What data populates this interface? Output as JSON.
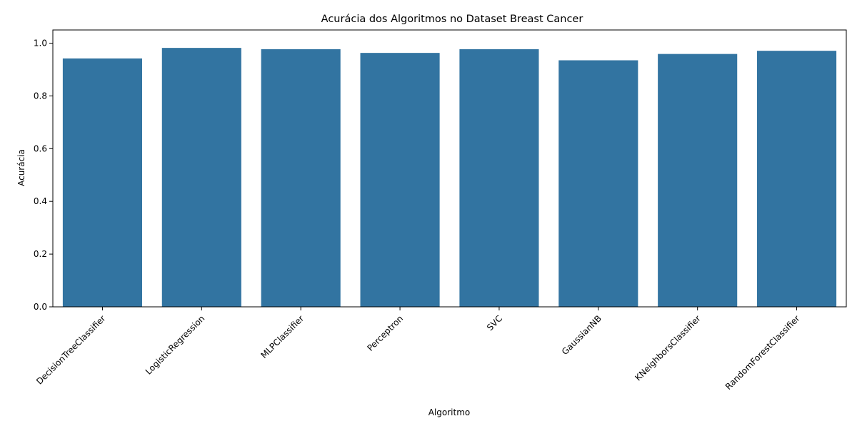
{
  "chart_data": {
    "type": "bar",
    "title": "Acurácia dos Algoritmos no Dataset Breast Cancer",
    "xlabel": "Algoritmo",
    "ylabel": "Acurácia",
    "categories": [
      "DecisionTreeClassifier",
      "LogisticRegression",
      "MLPClassifier",
      "Perceptron",
      "SVC",
      "GaussianNB",
      "KNeighborsClassifier",
      "RandomForestClassifier"
    ],
    "values": [
      0.942,
      0.982,
      0.977,
      0.963,
      0.977,
      0.935,
      0.959,
      0.971
    ],
    "ylim": [
      0,
      1.05
    ],
    "yticks": [
      "0.0",
      "0.2",
      "0.4",
      "0.6",
      "0.8",
      "1.0"
    ],
    "bar_color": "#3274a1",
    "grid": false,
    "legend": "none"
  }
}
